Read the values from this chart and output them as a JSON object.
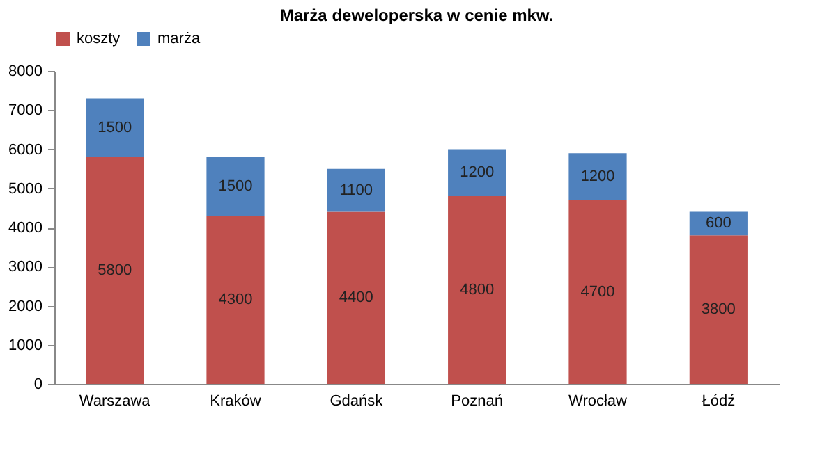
{
  "chart_data": {
    "type": "bar",
    "title": "Marża deweloperska w cenie mkw.",
    "categories": [
      "Warszawa",
      "Kraków",
      "Gdańsk",
      "Poznań",
      "Wrocław",
      "Łódź"
    ],
    "stacked": true,
    "data_labels": true,
    "legend": "top",
    "grid": false,
    "series": [
      {
        "name": "koszty",
        "color": "#c0504d",
        "values": [
          5800,
          4300,
          4400,
          4800,
          4700,
          3800
        ]
      },
      {
        "name": "marża",
        "color": "#4f81bd",
        "values": [
          1500,
          1500,
          1100,
          1200,
          1200,
          600
        ]
      }
    ],
    "ylim": [
      0,
      8000
    ],
    "yticks": [
      0,
      1000,
      2000,
      3000,
      4000,
      5000,
      6000,
      7000,
      8000
    ]
  }
}
